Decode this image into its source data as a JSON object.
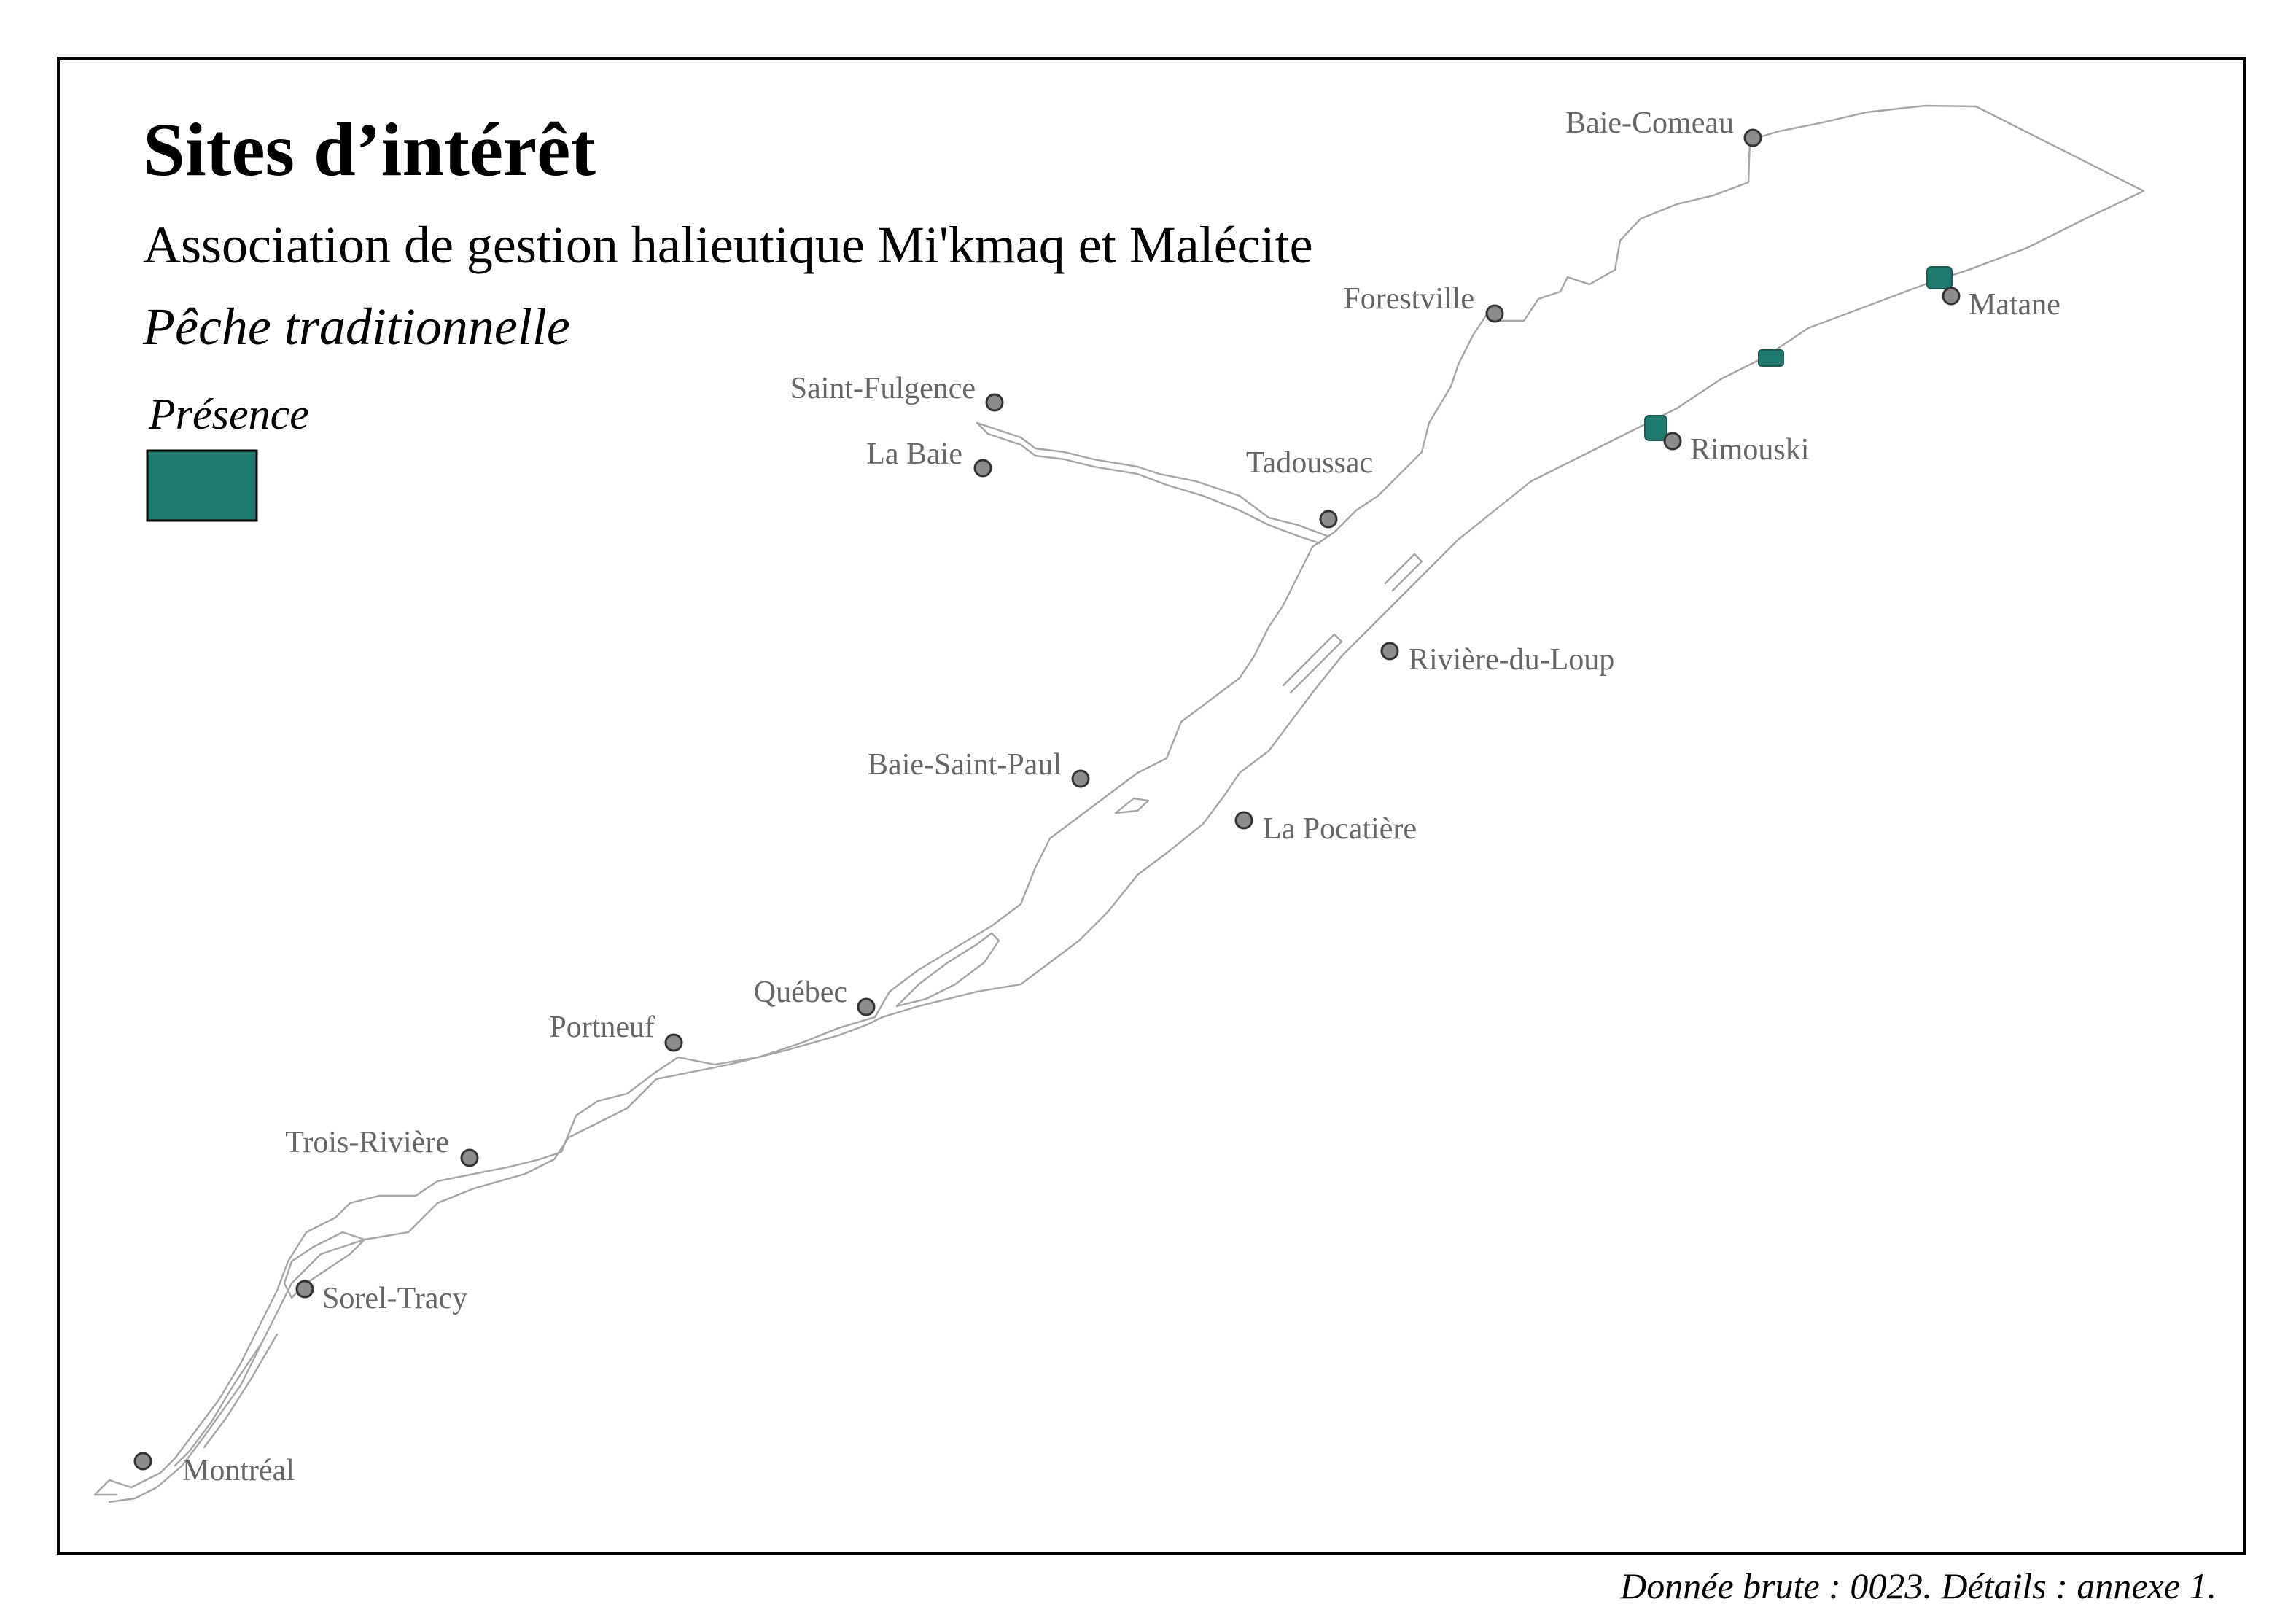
{
  "title": "Sites d’intérêt",
  "subtitle": "Association de gestion halieutique Mi'kmaq et Malécite",
  "theme": "Pêche traditionnelle",
  "legend": {
    "title": "Présence",
    "swatch_color": "#207a70"
  },
  "source_note": "Donnée brute : 0023. Détails : annexe 1.",
  "colors": {
    "river_outline": "#a6a6a6",
    "city_fill": "#8c8c8c",
    "label": "#666666",
    "presence": "#207a70"
  },
  "cities": [
    {
      "name": "Baie-Comeau"
    },
    {
      "name": "Forestville"
    },
    {
      "name": "Matane"
    },
    {
      "name": "Saint-Fulgence"
    },
    {
      "name": "La Baie"
    },
    {
      "name": "Tadoussac"
    },
    {
      "name": "Rimouski"
    },
    {
      "name": "Rivière-du-Loup"
    },
    {
      "name": "Baie-Saint-Paul"
    },
    {
      "name": "La Pocatière"
    },
    {
      "name": "Québec"
    },
    {
      "name": "Portneuf"
    },
    {
      "name": "Trois-Rivière"
    },
    {
      "name": "Sorel-Tracy"
    },
    {
      "name": "Montréal"
    }
  ],
  "presence_sites": [
    {
      "near": "Matane"
    },
    {
      "near": "between Rimouski and Matane"
    },
    {
      "near": "Rimouski"
    }
  ]
}
